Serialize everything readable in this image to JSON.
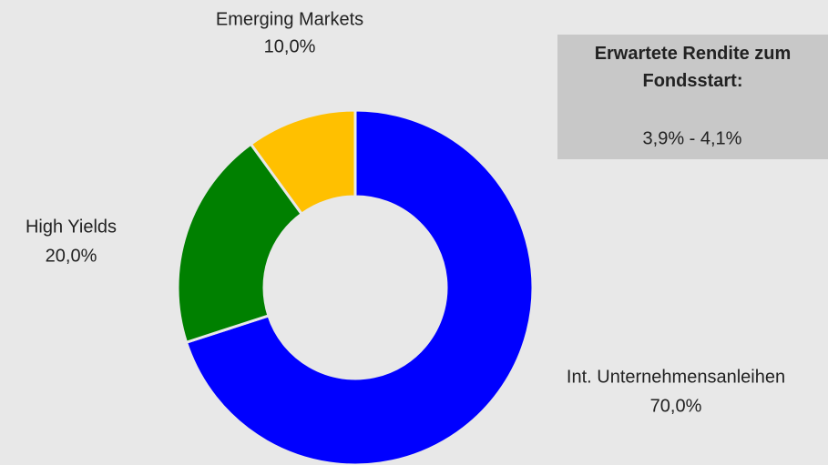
{
  "chart_data": {
    "type": "donut",
    "categories": [
      "Int. Unternehmensanleihen",
      "High Yields",
      "Emerging Markets"
    ],
    "values": [
      70,
      20,
      10
    ],
    "value_labels": [
      "70,0%",
      "20,0%",
      "10,0%"
    ],
    "colors": [
      "#0000ff",
      "#008000",
      "#ffc000"
    ],
    "annotation": {
      "title": "Erwartete Rendite zum Fondsstart:",
      "text": "3,9% - 4,1%"
    }
  }
}
